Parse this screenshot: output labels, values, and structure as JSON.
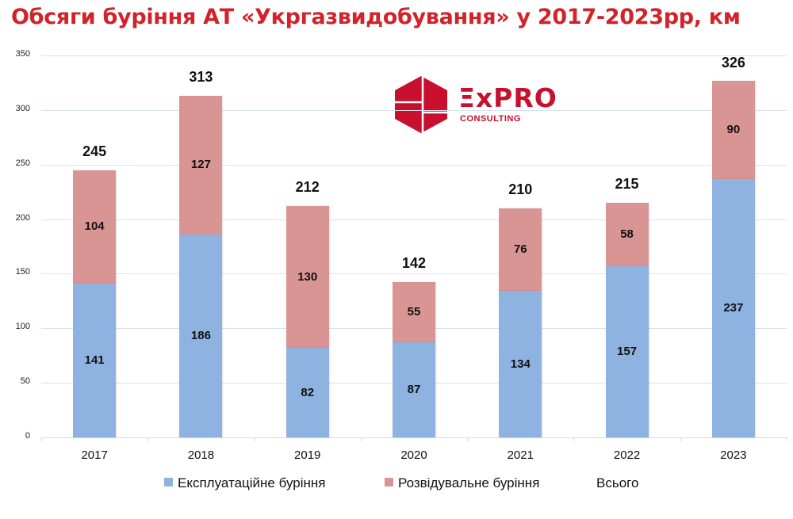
{
  "title": "Обсяги буріння АТ «Укргазвидобування» у 2017-2023рр, км",
  "logo": {
    "name": "ExPro",
    "word": "ΞxPRO",
    "subtitle": "CONSULTING",
    "color": "#c8102e"
  },
  "legend": {
    "items": [
      {
        "label": "Експлуатаційне буріння",
        "color": "#8fb3e0"
      },
      {
        "label": "Розвідувальне буріння",
        "color": "#d99594"
      },
      {
        "label": "Всього",
        "color": null
      }
    ]
  },
  "y_axis": {
    "ticks": [
      "0",
      "50",
      "100",
      "150",
      "200",
      "250",
      "300",
      "350"
    ]
  },
  "x_axis": {
    "ticks": [
      "2017",
      "2018",
      "2019",
      "2020",
      "2021",
      "2022",
      "2023"
    ]
  },
  "bars": [
    {
      "year": "2017",
      "expl": "141",
      "rozv": "104",
      "total": "245"
    },
    {
      "year": "2018",
      "expl": "186",
      "rozv": "127",
      "total": "313"
    },
    {
      "year": "2019",
      "expl": "82",
      "rozv": "130",
      "total": "212"
    },
    {
      "year": "2020",
      "expl": "87",
      "rozv": "55",
      "total": "142"
    },
    {
      "year": "2021",
      "expl": "134",
      "rozv": "76",
      "total": "210"
    },
    {
      "year": "2022",
      "expl": "157",
      "rozv": "58",
      "total": "215"
    },
    {
      "year": "2023",
      "expl": "237",
      "rozv": "90",
      "total": "326"
    }
  ],
  "chart_data": {
    "type": "bar",
    "stacked": true,
    "title": "Обсяги буріння АТ «Укргазвидобування» у 2017-2023рр, км",
    "xlabel": "",
    "ylabel": "",
    "ylim": [
      0,
      350
    ],
    "yticks": [
      0,
      50,
      100,
      150,
      200,
      250,
      300,
      350
    ],
    "grid": true,
    "legend_position": "bottom",
    "categories": [
      "2017",
      "2018",
      "2019",
      "2020",
      "2021",
      "2022",
      "2023"
    ],
    "series": [
      {
        "name": "Експлуатаційне буріння",
        "color": "#8fb3e0",
        "values": [
          141,
          186,
          82,
          87,
          134,
          157,
          237
        ]
      },
      {
        "name": "Розвідувальне буріння",
        "color": "#d99594",
        "values": [
          104,
          127,
          130,
          55,
          76,
          58,
          90
        ]
      },
      {
        "name": "Всього",
        "values": [
          245,
          313,
          212,
          142,
          210,
          215,
          326
        ],
        "display": "label-only"
      }
    ]
  }
}
